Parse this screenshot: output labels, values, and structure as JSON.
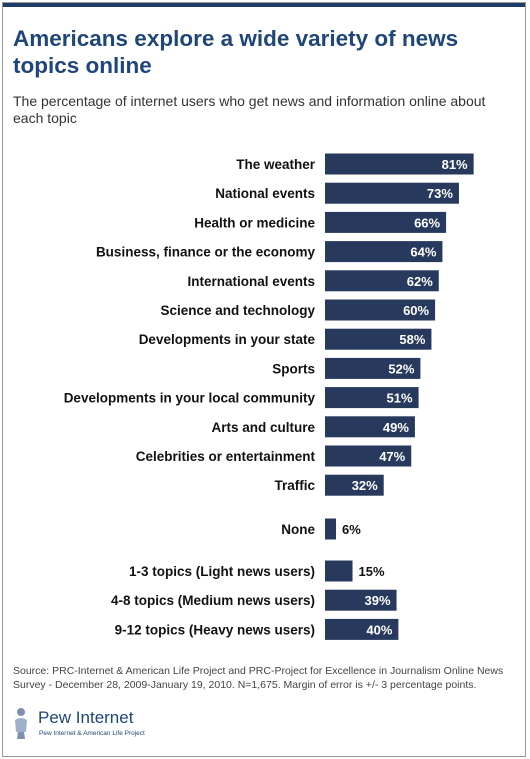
{
  "colors": {
    "bar": "#27395c",
    "title": "#1f4678",
    "value_text_inside": "#ffffff",
    "value_text_outside": "#111111"
  },
  "header": {
    "title": "Americans explore a wide variety of news topics online",
    "subtitle": "The percentage of internet users who get news and information online about each topic"
  },
  "chart_data": {
    "type": "bar",
    "orientation": "horizontal",
    "title": "Americans explore a wide variety of news topics online",
    "subtitle": "The percentage of internet users who get news and information online about each topic",
    "value_suffix": "%",
    "xlim": [
      0,
      100
    ],
    "grid": false,
    "legend": "none",
    "groups": [
      {
        "categories": [
          "The weather",
          "National events",
          "Health or medicine",
          "Business, finance or the economy",
          "International events",
          "Science and technology",
          "Developments in your state",
          "Sports",
          "Developments in your local community",
          "Arts and culture",
          "Celebrities or entertainment",
          "Traffic"
        ],
        "values": [
          81,
          73,
          66,
          64,
          62,
          60,
          58,
          52,
          51,
          49,
          47,
          32
        ]
      },
      {
        "categories": [
          "None"
        ],
        "values": [
          6
        ]
      },
      {
        "categories": [
          "1-3 topics (Light news users)",
          "4-8 topics (Medium news users)",
          "9-12 topics (Heavy news users)"
        ],
        "values": [
          15,
          39,
          40
        ]
      }
    ]
  },
  "footer": {
    "source_line1": "Source: PRC-Internet & American Life Project and PRC-Project for Excellence in Journalism Online News",
    "source_line2": "Survey - December 28, 2009-January 19, 2010. N=1,675. Margin of error is +/- 3 percentage points.",
    "logo_name": "Pew Internet",
    "logo_tagline": "Pew Internet & American Life Project",
    "logo_icon": "pew-figure-icon"
  }
}
